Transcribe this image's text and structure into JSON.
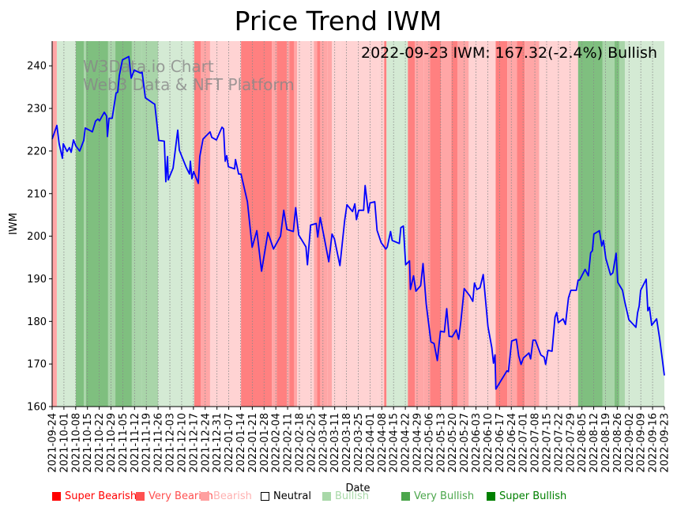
{
  "chart_data": {
    "type": "line",
    "title": "Price Trend IWM",
    "annotation": "2022-09-23 IWM: 167.32(-2.4%) Bullish",
    "watermark": [
      "W3Data.io Chart",
      "Web3 Data & NFT Platform"
    ],
    "xlabel": "Date",
    "ylabel": "IWM",
    "ylim": [
      160,
      245.8
    ],
    "yticks": [
      160,
      170,
      180,
      190,
      200,
      210,
      220,
      230,
      240
    ],
    "x_start_date": "2021-09-24",
    "x_range_days": [
      0,
      364
    ],
    "xtick_labels": [
      "2021-09-24",
      "2021-10-01",
      "2021-10-08",
      "2021-10-15",
      "2021-10-22",
      "2021-10-29",
      "2021-11-05",
      "2021-11-12",
      "2021-11-19",
      "2021-11-26",
      "2021-12-03",
      "2021-12-10",
      "2021-12-17",
      "2021-12-24",
      "2021-12-31",
      "2022-01-07",
      "2022-01-14",
      "2022-01-21",
      "2022-01-28",
      "2022-02-04",
      "2022-02-11",
      "2022-02-18",
      "2022-02-25",
      "2022-03-04",
      "2022-03-11",
      "2022-03-18",
      "2022-03-25",
      "2022-04-01",
      "2022-04-08",
      "2022-04-15",
      "2022-04-22",
      "2022-04-29",
      "2022-05-06",
      "2022-05-13",
      "2022-05-20",
      "2022-05-27",
      "2022-06-03",
      "2022-06-10",
      "2022-06-17",
      "2022-06-24",
      "2022-07-01",
      "2022-07-08",
      "2022-07-15",
      "2022-07-22",
      "2022-07-29",
      "2022-08-05",
      "2022-08-12",
      "2022-08-19",
      "2022-08-26",
      "2022-09-02",
      "2022-09-09",
      "2022-09-16",
      "2022-09-23"
    ],
    "grid": "vertical-dotted",
    "series": [
      {
        "name": "IWM",
        "color": "#0000ff",
        "points": [
          [
            0,
            222.8
          ],
          [
            2.8,
            226
          ],
          [
            4.2,
            221.7
          ],
          [
            6.1,
            218.3
          ],
          [
            6.6,
            221.7
          ],
          [
            8.9,
            219.9
          ],
          [
            10.3,
            220.8
          ],
          [
            11.3,
            219.7
          ],
          [
            12.7,
            222.6
          ],
          [
            14.1,
            221.2
          ],
          [
            16.4,
            220
          ],
          [
            18.8,
            222.5
          ],
          [
            19.7,
            225.4
          ],
          [
            23,
            224.7
          ],
          [
            23.9,
            224.5
          ],
          [
            25.8,
            227
          ],
          [
            27.2,
            227.5
          ],
          [
            28.2,
            227.1
          ],
          [
            31,
            229.1
          ],
          [
            32.4,
            228.2
          ],
          [
            32.9,
            223.4
          ],
          [
            33.8,
            227.7
          ],
          [
            35.7,
            227.7
          ],
          [
            38,
            233.6
          ],
          [
            39,
            233.8
          ],
          [
            39.9,
            237.7
          ],
          [
            41.8,
            241.4
          ],
          [
            45.6,
            242.2
          ],
          [
            47,
            237.1
          ],
          [
            48.8,
            239
          ],
          [
            52.6,
            238.3
          ],
          [
            53.5,
            238.5
          ],
          [
            55.4,
            232.5
          ],
          [
            60.1,
            231.2
          ],
          [
            61,
            231
          ],
          [
            63.4,
            222.5
          ],
          [
            66.7,
            222.3
          ],
          [
            67.6,
            212.8
          ],
          [
            68.6,
            218.7
          ],
          [
            69,
            213.2
          ],
          [
            71.9,
            216
          ],
          [
            74.7,
            224.9
          ],
          [
            75.6,
            220.2
          ],
          [
            79.8,
            216.1
          ],
          [
            81.7,
            214.6
          ],
          [
            82.2,
            217.6
          ],
          [
            83.1,
            213.5
          ],
          [
            84.1,
            215.2
          ],
          [
            86.9,
            212.4
          ],
          [
            87.8,
            218.7
          ],
          [
            89.7,
            222.8
          ],
          [
            93.9,
            224.5
          ],
          [
            94.9,
            223.2
          ],
          [
            97.7,
            222.6
          ],
          [
            101,
            225.6
          ],
          [
            101.9,
            225.2
          ],
          [
            102.9,
            217.6
          ],
          [
            103.8,
            218.9
          ],
          [
            104.8,
            216.3
          ],
          [
            108.5,
            215.8
          ],
          [
            109,
            218
          ],
          [
            110.9,
            214.6
          ],
          [
            112.3,
            214.6
          ],
          [
            116.1,
            208.1
          ],
          [
            118.9,
            197.4
          ],
          [
            121.7,
            201.3
          ],
          [
            124.5,
            191.8
          ],
          [
            128.3,
            200.9
          ],
          [
            131.6,
            197
          ],
          [
            135.8,
            200
          ],
          [
            137.7,
            206.1
          ],
          [
            139.6,
            201.6
          ],
          [
            143.4,
            201.1
          ],
          [
            144.8,
            206.7
          ],
          [
            146.6,
            200.3
          ],
          [
            150.9,
            197.5
          ],
          [
            151.8,
            193.3
          ],
          [
            153.7,
            202.6
          ],
          [
            157,
            203
          ],
          [
            157.9,
            199.8
          ],
          [
            159.4,
            204.4
          ],
          [
            162.2,
            198.8
          ],
          [
            164.5,
            194
          ],
          [
            166.4,
            200.5
          ],
          [
            167.8,
            199.4
          ],
          [
            171.1,
            193.1
          ],
          [
            173.9,
            203.7
          ],
          [
            175.3,
            207.4
          ],
          [
            178.6,
            205.8
          ],
          [
            180,
            207.6
          ],
          [
            180.9,
            203.9
          ],
          [
            182.3,
            206.1
          ],
          [
            185.2,
            206.1
          ],
          [
            186.1,
            211.9
          ],
          [
            188,
            205.5
          ],
          [
            189,
            207.8
          ],
          [
            191.8,
            208.1
          ],
          [
            193.2,
            201.4
          ],
          [
            195.6,
            198.5
          ],
          [
            198.4,
            197
          ],
          [
            199.3,
            197.5
          ],
          [
            201.2,
            201.1
          ],
          [
            202.2,
            199
          ],
          [
            206.4,
            198.3
          ],
          [
            207.3,
            202
          ],
          [
            208.8,
            202.4
          ],
          [
            210.2,
            193.3
          ],
          [
            212.5,
            194.2
          ],
          [
            213,
            187.5
          ],
          [
            214.9,
            190.7
          ],
          [
            216.3,
            187.1
          ],
          [
            219.1,
            188.4
          ],
          [
            220.5,
            193.6
          ],
          [
            222.4,
            184.1
          ],
          [
            225.2,
            175.2
          ],
          [
            227.1,
            174.8
          ],
          [
            229,
            170.8
          ],
          [
            230.9,
            177.7
          ],
          [
            233.2,
            177.5
          ],
          [
            234.6,
            183
          ],
          [
            236,
            176.5
          ],
          [
            237.9,
            176.4
          ],
          [
            240.3,
            178
          ],
          [
            241.7,
            175.8
          ],
          [
            243.1,
            180.3
          ],
          [
            245,
            187.7
          ],
          [
            248.3,
            186
          ],
          [
            250.1,
            184.7
          ],
          [
            251.1,
            189
          ],
          [
            252.5,
            187.5
          ],
          [
            254.4,
            187.9
          ],
          [
            256.3,
            191
          ],
          [
            259.1,
            178.8
          ],
          [
            261.4,
            173.8
          ],
          [
            262.4,
            170.2
          ],
          [
            263.3,
            172.1
          ],
          [
            263.8,
            164.1
          ],
          [
            267.5,
            166.5
          ],
          [
            270.4,
            168.4
          ],
          [
            271.3,
            168.2
          ],
          [
            273.2,
            175.4
          ],
          [
            276,
            175.8
          ],
          [
            277.4,
            171.9
          ],
          [
            278.8,
            169.9
          ],
          [
            280.2,
            171.4
          ],
          [
            283.5,
            172.6
          ],
          [
            284.5,
            171.2
          ],
          [
            285.9,
            175.6
          ],
          [
            287.3,
            175.6
          ],
          [
            290.6,
            172.1
          ],
          [
            292.5,
            171.6
          ],
          [
            293.4,
            169.9
          ],
          [
            294.8,
            173.2
          ],
          [
            297.2,
            173
          ],
          [
            299,
            181
          ],
          [
            300,
            182.1
          ],
          [
            300.9,
            179.7
          ],
          [
            303.8,
            180.6
          ],
          [
            305.2,
            179.3
          ],
          [
            307,
            185.5
          ],
          [
            308.4,
            187.3
          ],
          [
            311.7,
            187.3
          ],
          [
            312.7,
            189.7
          ],
          [
            313.6,
            189.7
          ],
          [
            316.9,
            192.2
          ],
          [
            318.8,
            190.7
          ],
          [
            320.2,
            196.1
          ],
          [
            321.2,
            196.6
          ],
          [
            322.1,
            200.5
          ],
          [
            325.4,
            201.3
          ],
          [
            326.8,
            197.7
          ],
          [
            327.8,
            199
          ],
          [
            329.2,
            194.8
          ],
          [
            332,
            190.9
          ],
          [
            333.4,
            191.4
          ],
          [
            335.3,
            196
          ],
          [
            336.3,
            189.2
          ],
          [
            339.1,
            187.3
          ],
          [
            340.5,
            184.5
          ],
          [
            342.9,
            180.4
          ],
          [
            347.1,
            178.6
          ],
          [
            348.1,
            182
          ],
          [
            349,
            183.6
          ],
          [
            349.9,
            187.3
          ],
          [
            353.2,
            189.9
          ],
          [
            354.2,
            182.5
          ],
          [
            355.1,
            183.3
          ],
          [
            356.5,
            179.1
          ],
          [
            359.4,
            180.6
          ],
          [
            361.2,
            176
          ],
          [
            362.6,
            171.7
          ],
          [
            364,
            167.32
          ]
        ]
      }
    ],
    "sentiment_colors": {
      "Super Bearish": "#ff8080",
      "Very Bearish": "#ffa6a6",
      "Bearish": "#ffd3d3",
      "Neutral": "#ffffff",
      "Bullish": "#d4ead4",
      "Very Bullish": "#a9d5a9",
      "Super Bullish": "#7fbf7f"
    },
    "bands": [
      [
        0,
        2.8,
        "Very Bearish"
      ],
      [
        2.8,
        14.1,
        "Bullish"
      ],
      [
        14.1,
        18.8,
        "Super Bullish"
      ],
      [
        18.8,
        20.2,
        "Very Bullish"
      ],
      [
        20.2,
        33.3,
        "Super Bullish"
      ],
      [
        33.3,
        37.6,
        "Very Bullish"
      ],
      [
        37.6,
        47.4,
        "Super Bullish"
      ],
      [
        47.4,
        53.5,
        "Very Bullish"
      ],
      [
        53.5,
        63,
        "Very Bullish"
      ],
      [
        63,
        84.5,
        "Bullish"
      ],
      [
        84.5,
        88.3,
        "Super Bearish"
      ],
      [
        88.3,
        93.9,
        "Very Bearish"
      ],
      [
        93.9,
        112.3,
        "Bearish"
      ],
      [
        112.3,
        124,
        "Super Bearish"
      ],
      [
        124,
        130.7,
        "Super Bearish"
      ],
      [
        130.7,
        133.5,
        "Very Bearish"
      ],
      [
        133.5,
        139.6,
        "Super Bearish"
      ],
      [
        139.6,
        141,
        "Very Bearish"
      ],
      [
        141,
        143.9,
        "Super Bearish"
      ],
      [
        143.9,
        145.7,
        "Very Bearish"
      ],
      [
        145.7,
        155.6,
        "Bearish"
      ],
      [
        155.6,
        157.5,
        "Very Bearish"
      ],
      [
        157.5,
        159.4,
        "Super Bearish"
      ],
      [
        159.4,
        163.6,
        "Very Bearish"
      ],
      [
        163.6,
        166.4,
        "Very Bearish"
      ],
      [
        166.4,
        171.6,
        "Bearish"
      ],
      [
        171.6,
        181.4,
        "Bearish"
      ],
      [
        181.4,
        193.7,
        "Bearish"
      ],
      [
        193.7,
        197.4,
        "Bearish"
      ],
      [
        197.4,
        198.8,
        "Super Bearish"
      ],
      [
        198.8,
        211.5,
        "Bullish"
      ],
      [
        211.5,
        215.7,
        "Super Bearish"
      ],
      [
        215.7,
        220.9,
        "Very Bearish"
      ],
      [
        220.9,
        224.7,
        "Very Bearish"
      ],
      [
        224.7,
        231.2,
        "Super Bearish"
      ],
      [
        231.2,
        237.3,
        "Very Bearish"
      ],
      [
        237.3,
        241.1,
        "Super Bearish"
      ],
      [
        241.1,
        247.7,
        "Very Bearish"
      ],
      [
        247.7,
        263.7,
        "Bearish"
      ],
      [
        263.7,
        270.6,
        "Super Bearish"
      ],
      [
        270.6,
        276.3,
        "Very Bearish"
      ],
      [
        276.3,
        281,
        "Super Bearish"
      ],
      [
        281,
        289.6,
        "Very Bearish"
      ],
      [
        289.6,
        312.7,
        "Bearish"
      ],
      [
        312.7,
        327.3,
        "Super Bullish"
      ],
      [
        327.3,
        334.3,
        "Very Bullish"
      ],
      [
        334.3,
        337.2,
        "Super Bullish"
      ],
      [
        337.2,
        340.5,
        "Very Bullish"
      ],
      [
        340.5,
        364,
        "Bullish"
      ]
    ],
    "legend": {
      "position": "bottom",
      "entries": [
        {
          "label": "Super Bearish",
          "swatch": "#ff0000",
          "text_color": "#ff0000"
        },
        {
          "label": "Very Bearish",
          "swatch": "#ff5050",
          "text_color": "#ff5050"
        },
        {
          "label": "Bearish",
          "swatch": "#ffa0a0",
          "text_color": "#ffb0b0"
        },
        {
          "label": "Neutral",
          "swatch": "#ffffff",
          "text_color": "#000000"
        },
        {
          "label": "Bullish",
          "swatch": "#a8d8a8",
          "text_color": "#a8d8a8"
        },
        {
          "label": "Very Bullish",
          "swatch": "#4ca64c",
          "text_color": "#4ca64c"
        },
        {
          "label": "Super Bullish",
          "swatch": "#008000",
          "text_color": "#008000"
        }
      ]
    }
  }
}
